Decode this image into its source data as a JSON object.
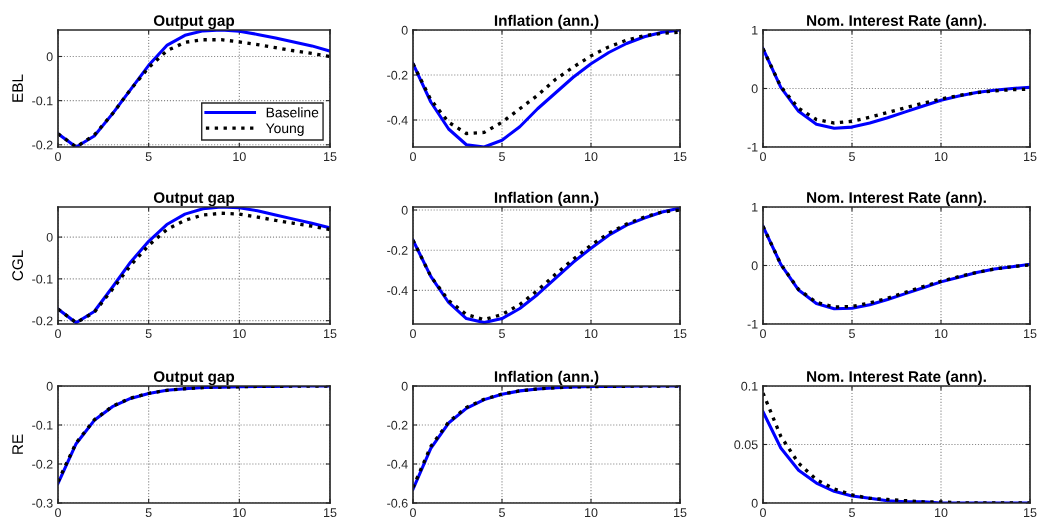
{
  "chart_data": [
    {
      "type": "line",
      "title": "Output gap",
      "ylabel": "EBL",
      "x": [
        0,
        1,
        2,
        3,
        4,
        5,
        6,
        7,
        8,
        9,
        10,
        11,
        12,
        13,
        14,
        15
      ],
      "xlim": [
        0,
        15
      ],
      "xticks": [
        0,
        5,
        10,
        15
      ],
      "ylim": [
        -0.205,
        0.06
      ],
      "yticks": [
        -0.2,
        -0.1,
        0
      ],
      "grid": true,
      "legend": "bottom right",
      "series": [
        {
          "name": "Baseline",
          "color": "#0000ff",
          "line_style": "solid",
          "values": [
            -0.175,
            -0.205,
            -0.18,
            -0.13,
            -0.075,
            -0.02,
            0.025,
            0.048,
            0.058,
            0.06,
            0.057,
            0.05,
            0.042,
            0.033,
            0.024,
            0.012
          ]
        },
        {
          "name": "Young",
          "color": "#000000",
          "line_style": "dotted",
          "values": [
            -0.175,
            -0.205,
            -0.178,
            -0.13,
            -0.075,
            -0.025,
            0.013,
            0.032,
            0.038,
            0.038,
            0.033,
            0.027,
            0.02,
            0.013,
            0.007,
            0.0
          ]
        }
      ]
    },
    {
      "type": "line",
      "title": "Inflation (ann.)",
      "x": [
        0,
        1,
        2,
        3,
        4,
        5,
        6,
        7,
        8,
        9,
        10,
        11,
        12,
        13,
        14,
        15
      ],
      "xlim": [
        0,
        15
      ],
      "xticks": [
        0,
        5,
        10,
        15
      ],
      "ylim": [
        -0.52,
        0
      ],
      "yticks": [
        -0.4,
        -0.2,
        0
      ],
      "grid": true,
      "series": [
        {
          "color": "#0000ff",
          "line_style": "solid",
          "values": [
            -0.15,
            -0.32,
            -0.44,
            -0.51,
            -0.52,
            -0.49,
            -0.43,
            -0.35,
            -0.28,
            -0.21,
            -0.15,
            -0.1,
            -0.06,
            -0.03,
            -0.01,
            0
          ]
        },
        {
          "color": "#000000",
          "line_style": "dotted",
          "values": [
            -0.15,
            -0.31,
            -0.41,
            -0.46,
            -0.455,
            -0.41,
            -0.35,
            -0.29,
            -0.22,
            -0.165,
            -0.115,
            -0.075,
            -0.045,
            -0.025,
            -0.015,
            -0.01
          ]
        }
      ]
    },
    {
      "type": "line",
      "title": "Nom. Interest Rate (ann).",
      "x": [
        0,
        1,
        2,
        3,
        4,
        5,
        6,
        7,
        8,
        9,
        10,
        11,
        12,
        13,
        14,
        15
      ],
      "xlim": [
        0,
        15
      ],
      "xticks": [
        0,
        5,
        10,
        15
      ],
      "ylim": [
        -1,
        1
      ],
      "yticks": [
        -1,
        0,
        1
      ],
      "grid": true,
      "series": [
        {
          "color": "#0000ff",
          "line_style": "solid",
          "values": [
            0.68,
            0.02,
            -0.39,
            -0.61,
            -0.68,
            -0.66,
            -0.59,
            -0.5,
            -0.4,
            -0.3,
            -0.2,
            -0.13,
            -0.07,
            -0.03,
            0,
            0.02
          ]
        },
        {
          "color": "#000000",
          "line_style": "dotted",
          "values": [
            0.68,
            0.03,
            -0.34,
            -0.53,
            -0.59,
            -0.56,
            -0.49,
            -0.41,
            -0.33,
            -0.25,
            -0.18,
            -0.12,
            -0.07,
            -0.04,
            -0.02,
            -0.01
          ]
        }
      ]
    },
    {
      "type": "line",
      "title": "Output gap",
      "ylabel": "CGL",
      "x": [
        0,
        1,
        2,
        3,
        4,
        5,
        6,
        7,
        8,
        9,
        10,
        11,
        12,
        13,
        14,
        15
      ],
      "xlim": [
        0,
        15
      ],
      "xticks": [
        0,
        5,
        10,
        15
      ],
      "ylim": [
        -0.208,
        0.072
      ],
      "yticks": [
        -0.2,
        -0.1,
        0
      ],
      "grid": true,
      "series": [
        {
          "color": "#0000ff",
          "line_style": "solid",
          "values": [
            -0.172,
            -0.205,
            -0.178,
            -0.12,
            -0.06,
            -0.01,
            0.03,
            0.055,
            0.068,
            0.072,
            0.07,
            0.063,
            0.053,
            0.043,
            0.033,
            0.022
          ]
        },
        {
          "color": "#000000",
          "line_style": "dotted",
          "values": [
            -0.172,
            -0.205,
            -0.18,
            -0.125,
            -0.068,
            -0.02,
            0.018,
            0.04,
            0.053,
            0.057,
            0.055,
            0.048,
            0.04,
            0.033,
            0.026,
            0.018
          ]
        }
      ]
    },
    {
      "type": "line",
      "title": "Inflation (ann.)",
      "x": [
        0,
        1,
        2,
        3,
        4,
        5,
        6,
        7,
        8,
        9,
        10,
        11,
        12,
        13,
        14,
        15
      ],
      "xlim": [
        0,
        15
      ],
      "xticks": [
        0,
        5,
        10,
        15
      ],
      "ylim": [
        -0.567,
        0.015
      ],
      "yticks": [
        -0.4,
        -0.2,
        0
      ],
      "grid": true,
      "series": [
        {
          "color": "#0000ff",
          "line_style": "solid",
          "values": [
            -0.15,
            -0.33,
            -0.46,
            -0.54,
            -0.56,
            -0.54,
            -0.49,
            -0.42,
            -0.34,
            -0.26,
            -0.19,
            -0.125,
            -0.075,
            -0.04,
            -0.01,
            0.01
          ]
        },
        {
          "color": "#000000",
          "line_style": "dotted",
          "values": [
            -0.15,
            -0.33,
            -0.45,
            -0.52,
            -0.545,
            -0.52,
            -0.47,
            -0.4,
            -0.32,
            -0.245,
            -0.175,
            -0.115,
            -0.07,
            -0.035,
            -0.01,
            0.0
          ]
        }
      ]
    },
    {
      "type": "line",
      "title": "Nom. Interest Rate (ann).",
      "x": [
        0,
        1,
        2,
        3,
        4,
        5,
        6,
        7,
        8,
        9,
        10,
        11,
        12,
        13,
        14,
        15
      ],
      "xlim": [
        0,
        15
      ],
      "xticks": [
        0,
        5,
        10,
        15
      ],
      "ylim": [
        -1,
        1
      ],
      "yticks": [
        -1,
        0,
        1
      ],
      "grid": true,
      "series": [
        {
          "color": "#0000ff",
          "line_style": "solid",
          "values": [
            0.67,
            0.02,
            -0.42,
            -0.65,
            -0.74,
            -0.73,
            -0.67,
            -0.58,
            -0.48,
            -0.38,
            -0.28,
            -0.2,
            -0.12,
            -0.06,
            -0.02,
            0.02
          ]
        },
        {
          "color": "#000000",
          "line_style": "dotted",
          "values": [
            0.67,
            0.02,
            -0.41,
            -0.63,
            -0.71,
            -0.7,
            -0.64,
            -0.56,
            -0.46,
            -0.36,
            -0.27,
            -0.19,
            -0.12,
            -0.06,
            -0.02,
            0.01
          ]
        }
      ]
    },
    {
      "type": "line",
      "title": "Output gap",
      "ylabel": "RE",
      "x": [
        0,
        1,
        2,
        3,
        4,
        5,
        6,
        7,
        8,
        9,
        10,
        11,
        12,
        13,
        14,
        15
      ],
      "xlim": [
        0,
        15
      ],
      "xticks": [
        0,
        5,
        10,
        15
      ],
      "ylim": [
        -0.3,
        0
      ],
      "yticks": [
        -0.3,
        -0.2,
        -0.1,
        0
      ],
      "grid": true,
      "series": [
        {
          "color": "#0000ff",
          "line_style": "solid",
          "values": [
            -0.25,
            -0.148,
            -0.088,
            -0.053,
            -0.032,
            -0.019,
            -0.011,
            -0.007,
            -0.004,
            -0.003,
            -0.002,
            -0.001,
            -0.001,
            0,
            0,
            0
          ]
        },
        {
          "color": "#000000",
          "line_style": "dotted",
          "values": [
            -0.245,
            -0.146,
            -0.087,
            -0.052,
            -0.031,
            -0.019,
            -0.011,
            -0.007,
            -0.004,
            -0.003,
            -0.002,
            -0.001,
            -0.001,
            0,
            0,
            0
          ]
        }
      ]
    },
    {
      "type": "line",
      "title": "Inflation (ann.)",
      "x": [
        0,
        1,
        2,
        3,
        4,
        5,
        6,
        7,
        8,
        9,
        10,
        11,
        12,
        13,
        14,
        15
      ],
      "xlim": [
        0,
        15
      ],
      "xticks": [
        0,
        5,
        10,
        15
      ],
      "ylim": [
        -0.6,
        0
      ],
      "yticks": [
        -0.6,
        -0.4,
        -0.2,
        0
      ],
      "grid": true,
      "series": [
        {
          "color": "#0000ff",
          "line_style": "solid",
          "values": [
            -0.53,
            -0.32,
            -0.19,
            -0.115,
            -0.07,
            -0.042,
            -0.025,
            -0.015,
            -0.009,
            -0.005,
            -0.003,
            -0.002,
            -0.001,
            0,
            0,
            0
          ]
        },
        {
          "color": "#000000",
          "line_style": "dotted",
          "values": [
            -0.52,
            -0.31,
            -0.185,
            -0.11,
            -0.068,
            -0.041,
            -0.025,
            -0.015,
            -0.009,
            -0.005,
            -0.003,
            -0.002,
            -0.001,
            0,
            0,
            0
          ]
        }
      ]
    },
    {
      "type": "line",
      "title": "Nom. Interest Rate (ann).",
      "x": [
        0,
        1,
        2,
        3,
        4,
        5,
        6,
        7,
        8,
        9,
        10,
        11,
        12,
        13,
        14,
        15
      ],
      "xlim": [
        0,
        15
      ],
      "xticks": [
        0,
        5,
        10,
        15
      ],
      "ylim": [
        0,
        0.1
      ],
      "yticks": [
        0,
        0.05,
        0.1
      ],
      "grid": true,
      "series": [
        {
          "color": "#0000ff",
          "line_style": "solid",
          "values": [
            0.078,
            0.047,
            0.028,
            0.017,
            0.01,
            0.006,
            0.004,
            0.002,
            0.001,
            0.001,
            0,
            0,
            0,
            0,
            0,
            0
          ]
        },
        {
          "color": "#000000",
          "line_style": "dotted",
          "values": [
            0.094,
            0.057,
            0.034,
            0.02,
            0.012,
            0.007,
            0.004,
            0.003,
            0.002,
            0.001,
            0.001,
            0,
            0,
            0,
            0,
            0
          ]
        }
      ]
    }
  ]
}
